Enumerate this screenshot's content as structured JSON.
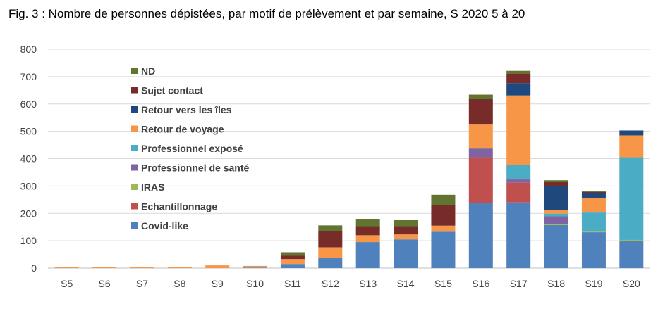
{
  "figure_title": "Fig. 3 : Nombre de personnes dépistées, par motif de prélèvement et par semaine, S 2020 5 à 20",
  "chart_data": {
    "type": "bar",
    "stacked": true,
    "title": "Fig. 3 : Nombre de personnes dépistées, par motif de prélèvement et par semaine, S 2020 5 à 20",
    "xlabel": "",
    "ylabel": "",
    "ylim": [
      0,
      800
    ],
    "yticks": [
      0,
      100,
      200,
      300,
      400,
      500,
      600,
      700,
      800
    ],
    "grid": true,
    "legend_position": "top-left (inside plot)",
    "categories": [
      "S5",
      "S6",
      "S7",
      "S8",
      "S9",
      "S10",
      "S11",
      "S12",
      "S13",
      "S14",
      "S15",
      "S16",
      "S17",
      "S18",
      "S19",
      "S20"
    ],
    "series": [
      {
        "name": "Covid-like",
        "color": "#4f81bd",
        "values": [
          0,
          0,
          0,
          0,
          0,
          2,
          15,
          36,
          95,
          105,
          133,
          237,
          240,
          157,
          131,
          98
        ]
      },
      {
        "name": "Echantillonnage",
        "color": "#c0504d",
        "values": [
          0,
          0,
          0,
          0,
          0,
          0,
          0,
          0,
          0,
          0,
          0,
          168,
          72,
          0,
          0,
          0
        ]
      },
      {
        "name": "IRAS",
        "color": "#9bbb59",
        "values": [
          0,
          0,
          0,
          0,
          0,
          0,
          0,
          0,
          0,
          0,
          0,
          0,
          0,
          4,
          2,
          5
        ]
      },
      {
        "name": "Professionnel de santé",
        "color": "#8064a2",
        "values": [
          0,
          0,
          0,
          0,
          0,
          0,
          0,
          0,
          0,
          0,
          0,
          32,
          12,
          28,
          0,
          0
        ]
      },
      {
        "name": "Professionnel exposé",
        "color": "#4bacc6",
        "values": [
          0,
          0,
          0,
          0,
          0,
          0,
          0,
          0,
          0,
          0,
          0,
          0,
          52,
          10,
          70,
          302
        ]
      },
      {
        "name": "Retour de voyage",
        "color": "#f79646",
        "values": [
          3,
          3,
          3,
          3,
          10,
          6,
          18,
          40,
          25,
          18,
          22,
          90,
          255,
          12,
          52,
          80
        ]
      },
      {
        "name": "Retour vers les îles",
        "color": "#1f497d",
        "values": [
          0,
          0,
          0,
          0,
          0,
          0,
          0,
          0,
          0,
          0,
          0,
          0,
          45,
          90,
          18,
          18
        ]
      },
      {
        "name": "Sujet contact",
        "color": "#772c2a",
        "values": [
          0,
          0,
          0,
          0,
          0,
          0,
          13,
          58,
          33,
          30,
          75,
          92,
          35,
          15,
          5,
          0
        ]
      },
      {
        "name": "ND",
        "color": "#5f7530",
        "values": [
          0,
          0,
          0,
          0,
          0,
          0,
          12,
          22,
          27,
          22,
          38,
          15,
          10,
          5,
          3,
          0
        ]
      }
    ],
    "legend_order": [
      "ND",
      "Sujet contact",
      "Retour vers les îles",
      "Retour de voyage",
      "Professionnel exposé",
      "Professionnel de santé",
      "IRAS",
      "Echantillonnage",
      "Covid-like"
    ]
  }
}
